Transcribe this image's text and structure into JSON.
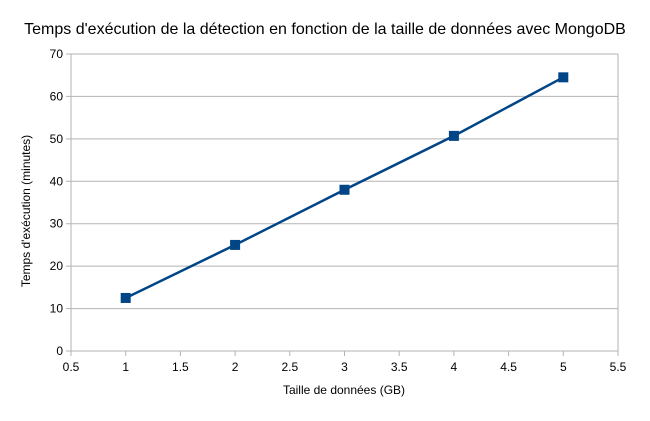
{
  "chart_data": {
    "type": "line",
    "title": "Temps d'exécution de la détection en fonction de la taille de données avec MongoDB",
    "xlabel": "Taille de données (GB)",
    "ylabel": "Temps d'exécution (minutes)",
    "xlim": [
      0.5,
      5.5
    ],
    "ylim": [
      0,
      70
    ],
    "x_ticks": [
      "0.5",
      "1",
      "1.5",
      "2",
      "2.5",
      "3",
      "3.5",
      "4",
      "4.5",
      "5",
      "5.5"
    ],
    "y_ticks": [
      "0",
      "10",
      "20",
      "30",
      "40",
      "50",
      "60",
      "70"
    ],
    "grid": "horizontal",
    "series": [
      {
        "x": [
          1,
          2,
          3,
          4,
          5
        ],
        "y": [
          12.5,
          25,
          38,
          50.7,
          64.5
        ],
        "color": "#004586",
        "marker": "square"
      }
    ]
  }
}
